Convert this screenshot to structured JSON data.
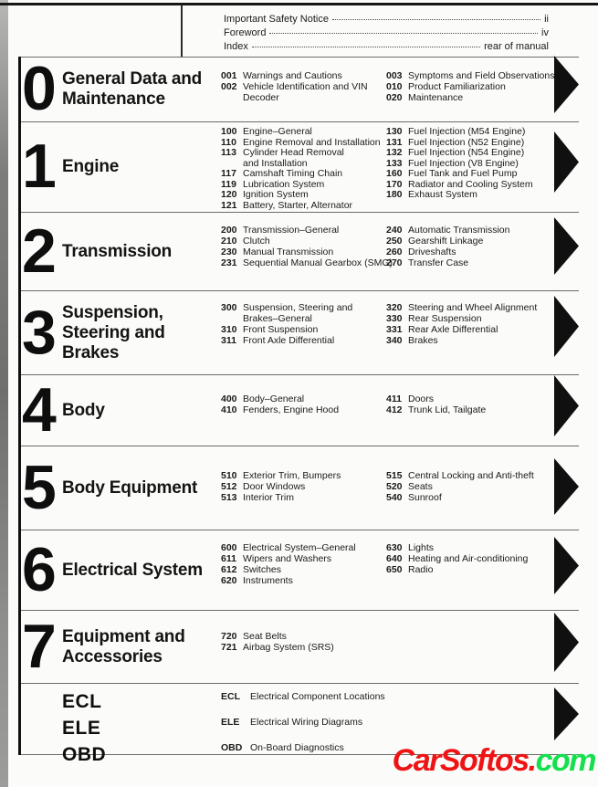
{
  "front_matter": {
    "rows": [
      {
        "label": "Important Safety Notice",
        "value": "ii"
      },
      {
        "label": "Foreword",
        "value": "iv"
      },
      {
        "label": "Index",
        "value": "rear of manual"
      }
    ]
  },
  "sections": [
    {
      "number": "0",
      "title": "General Data and\nMaintenance",
      "left": [
        {
          "code": "001",
          "text": "Warnings and Cautions"
        },
        {
          "code": "002",
          "text": "Vehicle Identification and VIN\nDecoder"
        }
      ],
      "right": [
        {
          "code": "003",
          "text": "Symptoms and Field Observations"
        },
        {
          "code": "010",
          "text": "Product Familiarization"
        },
        {
          "code": "020",
          "text": "Maintenance"
        }
      ]
    },
    {
      "number": "1",
      "title": "Engine",
      "left": [
        {
          "code": "100",
          "text": "Engine–General"
        },
        {
          "code": "110",
          "text": "Engine Removal and Installation"
        },
        {
          "code": "113",
          "text": "Cylinder Head Removal\nand Installation"
        },
        {
          "code": "117",
          "text": "Camshaft Timing Chain"
        },
        {
          "code": "119",
          "text": "Lubrication System"
        },
        {
          "code": "120",
          "text": "Ignition System"
        },
        {
          "code": "121",
          "text": "Battery, Starter, Alternator"
        }
      ],
      "right": [
        {
          "code": "130",
          "text": "Fuel Injection (M54 Engine)"
        },
        {
          "code": "131",
          "text": "Fuel Injection (N52 Engine)"
        },
        {
          "code": "132",
          "text": "Fuel Injection (N54 Engine)"
        },
        {
          "code": "133",
          "text": "Fuel Injection (V8 Engine)"
        },
        {
          "code": "160",
          "text": "Fuel Tank and Fuel Pump"
        },
        {
          "code": "170",
          "text": "Radiator and Cooling System"
        },
        {
          "code": "180",
          "text": "Exhaust System"
        }
      ]
    },
    {
      "number": "2",
      "title": "Transmission",
      "left": [
        {
          "code": "200",
          "text": "Transmission–General"
        },
        {
          "code": "210",
          "text": "Clutch"
        },
        {
          "code": "230",
          "text": "Manual Transmission"
        },
        {
          "code": "231",
          "text": "Sequential Manual Gearbox (SMG)"
        }
      ],
      "right": [
        {
          "code": "240",
          "text": "Automatic Transmission"
        },
        {
          "code": "250",
          "text": "Gearshift Linkage"
        },
        {
          "code": "260",
          "text": "Driveshafts"
        },
        {
          "code": "270",
          "text": "Transfer Case"
        }
      ]
    },
    {
      "number": "3",
      "title": "Suspension,\nSteering and\nBrakes",
      "left": [
        {
          "code": "300",
          "text": "Suspension, Steering and\nBrakes–General"
        },
        {
          "code": "310",
          "text": "Front Suspension"
        },
        {
          "code": "311",
          "text": "Front Axle Differential"
        }
      ],
      "right": [
        {
          "code": "320",
          "text": "Steering and Wheel Alignment"
        },
        {
          "code": "330",
          "text": "Rear Suspension"
        },
        {
          "code": "331",
          "text": "Rear Axle Differential"
        },
        {
          "code": "340",
          "text": "Brakes"
        }
      ]
    },
    {
      "number": "4",
      "title": "Body",
      "left": [
        {
          "code": "400",
          "text": "Body–General"
        },
        {
          "code": "410",
          "text": "Fenders, Engine Hood"
        }
      ],
      "right": [
        {
          "code": "411",
          "text": "Doors"
        },
        {
          "code": "412",
          "text": "Trunk Lid, Tailgate"
        }
      ]
    },
    {
      "number": "5",
      "title": "Body Equipment",
      "left": [
        {
          "code": "510",
          "text": "Exterior Trim, Bumpers"
        },
        {
          "code": "512",
          "text": "Door Windows"
        },
        {
          "code": "513",
          "text": "Interior Trim"
        }
      ],
      "right": [
        {
          "code": "515",
          "text": "Central Locking and Anti-theft"
        },
        {
          "code": "520",
          "text": "Seats"
        },
        {
          "code": "540",
          "text": "Sunroof"
        }
      ]
    },
    {
      "number": "6",
      "title": "Electrical System",
      "left": [
        {
          "code": "600",
          "text": "Electrical System–General"
        },
        {
          "code": "611",
          "text": "Wipers and Washers"
        },
        {
          "code": "612",
          "text": "Switches"
        },
        {
          "code": "620",
          "text": "Instruments"
        }
      ],
      "right": [
        {
          "code": "630",
          "text": "Lights"
        },
        {
          "code": "640",
          "text": "Heating and Air-conditioning"
        },
        {
          "code": "650",
          "text": "Radio"
        }
      ]
    },
    {
      "number": "7",
      "title": "Equipment and\nAccessories",
      "left": [
        {
          "code": "720",
          "text": "Seat Belts"
        },
        {
          "code": "721",
          "text": "Airbag System (SRS)"
        }
      ],
      "right": []
    },
    {
      "labels": [
        "ECL",
        "ELE",
        "OBD"
      ],
      "left": [
        {
          "code": "ECL",
          "text": "Electrical Component Locations"
        },
        {
          "code": "ELE",
          "text": "Electrical Wiring Diagrams"
        },
        {
          "code": "OBD",
          "text": "On-Board Diagnostics"
        }
      ]
    }
  ],
  "watermark": {
    "name": "CarSoftos.",
    "tld": "com",
    "name_color": "#ee1414",
    "tld_color": "#14e04e"
  },
  "colors": {
    "ink": "#1a1a1a",
    "rule_gray": "#6b6b67",
    "tab_black": "#101010",
    "page_bg": "#fbfbf9"
  }
}
